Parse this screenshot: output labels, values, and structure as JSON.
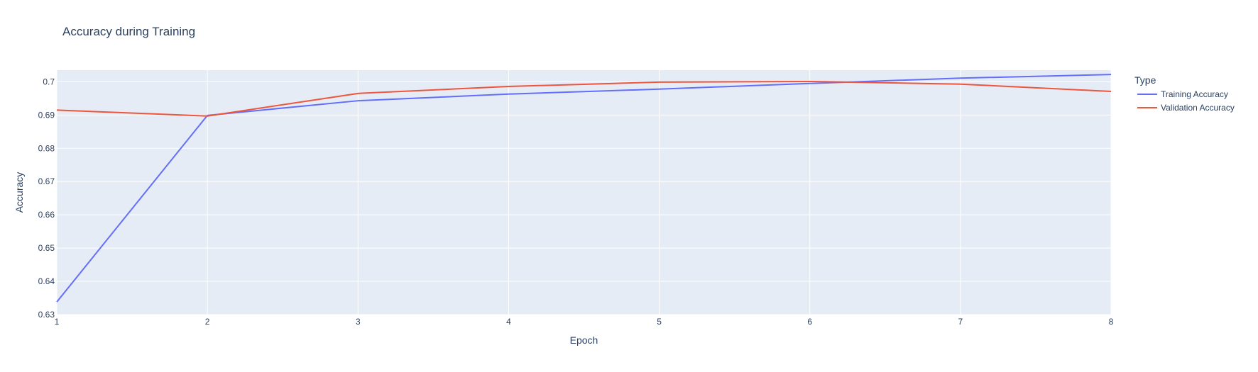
{
  "chart_data": {
    "type": "line",
    "title": "Accuracy during Training",
    "xlabel": "Epoch",
    "ylabel": "Accuracy",
    "x": [
      1,
      2,
      3,
      4,
      5,
      6,
      7,
      8
    ],
    "xlim": [
      1,
      8
    ],
    "ylim": [
      0.63,
      0.7035
    ],
    "x_ticks": [
      "1",
      "2",
      "3",
      "4",
      "5",
      "6",
      "7",
      "8"
    ],
    "y_ticks": [
      {
        "value": 0.63,
        "label": "0.63"
      },
      {
        "value": 0.64,
        "label": "0.64"
      },
      {
        "value": 0.65,
        "label": "0.65"
      },
      {
        "value": 0.66,
        "label": "0.66"
      },
      {
        "value": 0.67,
        "label": "0.67"
      },
      {
        "value": 0.68,
        "label": "0.68"
      },
      {
        "value": 0.69,
        "label": "0.69"
      },
      {
        "value": 0.7,
        "label": "0.7"
      }
    ],
    "grid": true,
    "legend": {
      "title": "Type",
      "placement": "right"
    },
    "series": [
      {
        "name": "Training Accuracy",
        "color": "#636efa",
        "values": [
          0.6338,
          0.6899,
          0.6943,
          0.6963,
          0.6978,
          0.6995,
          0.7011,
          0.7022
        ]
      },
      {
        "name": "Validation Accuracy",
        "color": "#ef553b",
        "values": [
          0.6915,
          0.6897,
          0.6965,
          0.6986,
          0.6999,
          0.7001,
          0.6993,
          0.6971
        ]
      }
    ],
    "colors": {
      "plot_background": "#e5ecf6",
      "grid": "#ffffff",
      "text": "#2a3f5f"
    }
  }
}
